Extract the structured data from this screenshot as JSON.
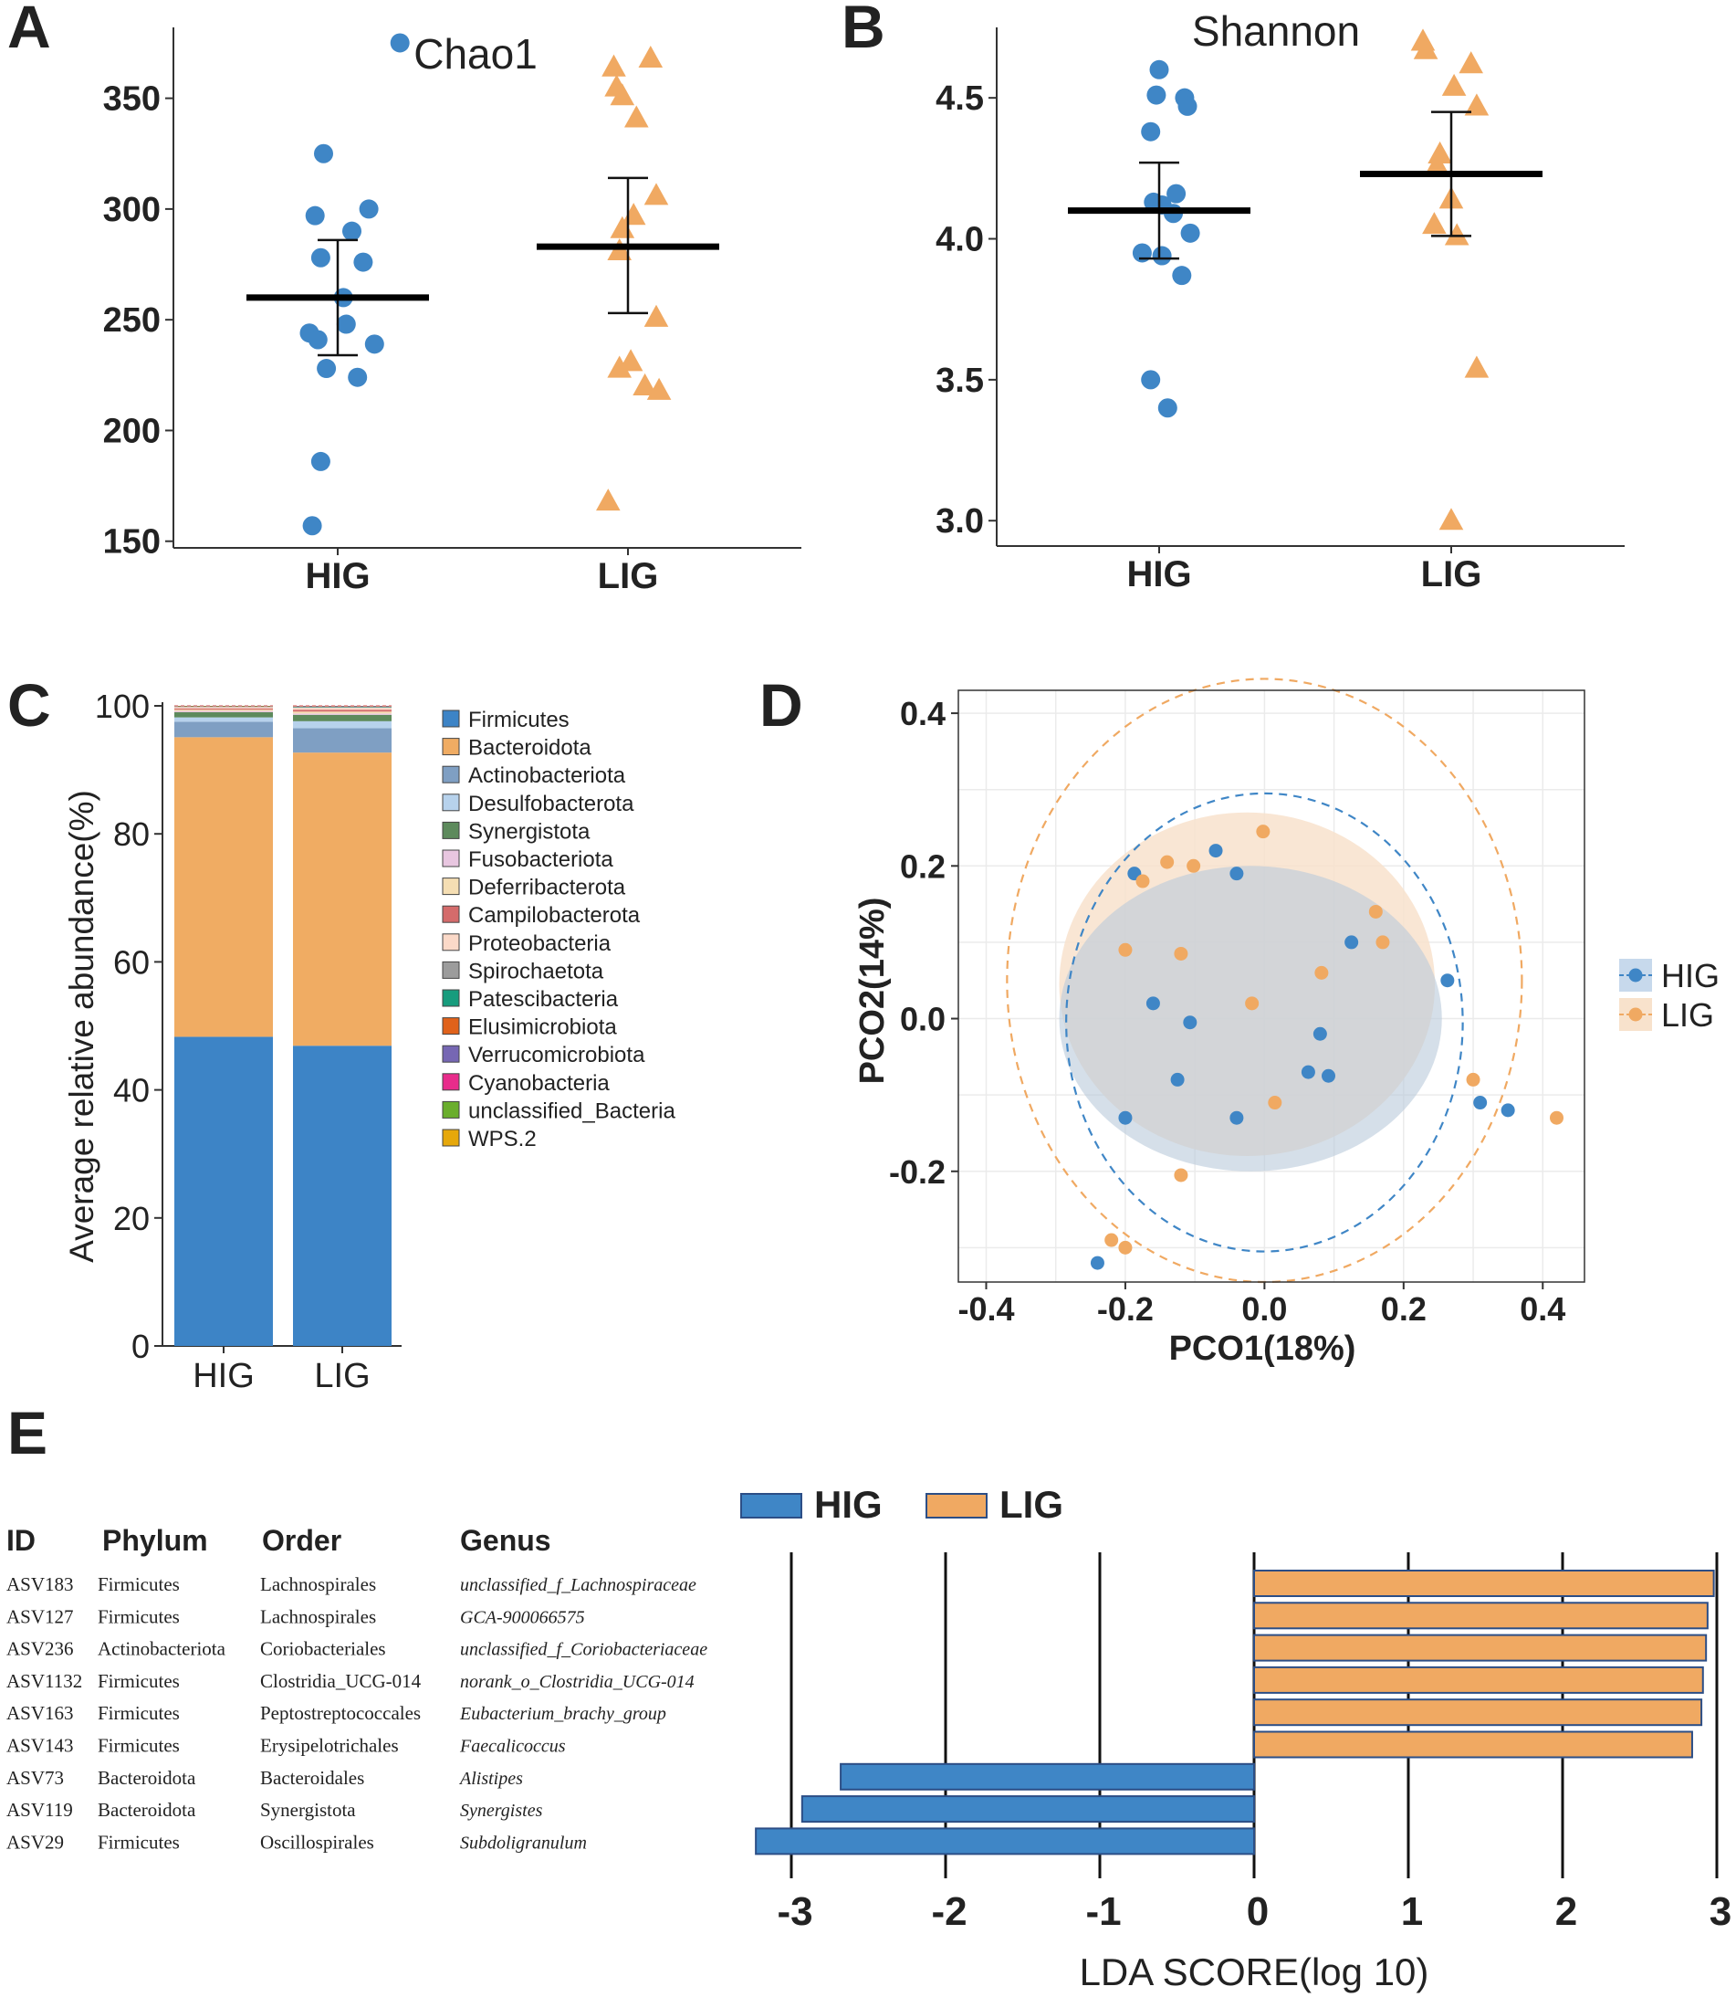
{
  "panel_letters": [
    "A",
    "B",
    "C",
    "D",
    "E"
  ],
  "colors": {
    "HIG": "#3f86c6",
    "LIG": "#f0a962",
    "HIG_fill": "#c7d9ec",
    "LIG_fill": "#f8e2cc",
    "overlap_fill": "#d9d5cf",
    "grid": "#ebebeb",
    "axis": "#333333",
    "text": "#222222"
  },
  "chart_data": [
    {
      "id": "A",
      "type": "scatter",
      "title": "Chao1",
      "categories": [
        "HIG",
        "LIG"
      ],
      "ylim": [
        147,
        382
      ],
      "yticks": [
        150,
        200,
        250,
        300,
        350
      ],
      "series": [
        {
          "name": "HIG",
          "marker": "circle",
          "values": [
            375,
            325,
            300,
            297,
            290,
            278,
            276,
            260,
            248,
            244,
            241,
            239,
            228,
            224,
            186,
            157
          ],
          "jitter": [
            0.22,
            -0.05,
            0.11,
            -0.08,
            0.05,
            -0.06,
            0.09,
            0.02,
            0.03,
            -0.1,
            -0.07,
            0.13,
            -0.04,
            0.07,
            -0.06,
            -0.09
          ],
          "mean": 260,
          "err_low": 234,
          "err_high": 286
        },
        {
          "name": "LIG",
          "marker": "triangle",
          "values": [
            368,
            364,
            355,
            351,
            341,
            306,
            297,
            291,
            281,
            251,
            231,
            228,
            220,
            218,
            168
          ],
          "jitter": [
            0.08,
            -0.05,
            -0.04,
            -0.02,
            0.03,
            0.1,
            0.02,
            -0.02,
            -0.03,
            0.1,
            0.01,
            -0.03,
            0.06,
            0.11,
            -0.07
          ],
          "mean": 283,
          "err_low": 253,
          "err_high": 314
        }
      ]
    },
    {
      "id": "B",
      "type": "scatter",
      "title": "Shannon",
      "categories": [
        "HIG",
        "LIG"
      ],
      "ylim": [
        2.91,
        4.75
      ],
      "yticks": [
        3.0,
        3.5,
        4.0,
        4.5
      ],
      "series": [
        {
          "name": "HIG",
          "marker": "circle",
          "values": [
            4.6,
            4.51,
            4.5,
            4.47,
            4.38,
            4.16,
            4.13,
            4.12,
            4.09,
            4.02,
            3.95,
            3.94,
            3.87,
            3.5,
            3.4
          ],
          "jitter": [
            0.0,
            -0.01,
            0.09,
            0.1,
            -0.03,
            0.06,
            -0.02,
            0.01,
            0.05,
            0.11,
            -0.06,
            0.01,
            0.08,
            -0.03,
            0.03
          ],
          "mean": 4.1,
          "err_low": 3.93,
          "err_high": 4.27
        },
        {
          "name": "LIG",
          "marker": "triangle",
          "values": [
            4.7,
            4.67,
            4.62,
            4.54,
            4.47,
            4.3,
            4.26,
            4.14,
            4.05,
            4.01,
            3.54,
            3.0
          ],
          "jitter": [
            -0.1,
            -0.09,
            0.07,
            0.01,
            0.09,
            -0.04,
            -0.05,
            0.0,
            -0.06,
            0.02,
            0.09,
            0.0
          ],
          "mean": 4.23,
          "err_low": 4.01,
          "err_high": 4.45
        }
      ]
    },
    {
      "id": "C",
      "type": "bar",
      "stacked": true,
      "ylabel": "Average relative abundance(%)",
      "ylim": [
        0,
        100
      ],
      "yticks": [
        0,
        20,
        40,
        60,
        80,
        100
      ],
      "categories": [
        "HIG",
        "LIG"
      ],
      "series": [
        {
          "name": "Firmicutes",
          "color": "#3d84c6",
          "values": [
            48.3,
            46.9
          ]
        },
        {
          "name": "Bacteroidota",
          "color": "#f0ac63",
          "values": [
            46.8,
            45.8
          ]
        },
        {
          "name": "Actinobacteriota",
          "color": "#7f9fc3",
          "values": [
            2.4,
            3.8
          ]
        },
        {
          "name": "Desulfobacterota",
          "color": "#b7d2ec",
          "values": [
            0.7,
            1.1
          ]
        },
        {
          "name": "Synergistota",
          "color": "#5d8a5c",
          "values": [
            0.8,
            1.0
          ]
        },
        {
          "name": "Fusobacteriota",
          "color": "#e8c6e0",
          "values": [
            0.2,
            0.2
          ]
        },
        {
          "name": "Deferribacterota",
          "color": "#f5deb3",
          "values": [
            0.2,
            0.3
          ]
        },
        {
          "name": "Campilobacterota",
          "color": "#d46b6b",
          "values": [
            0.2,
            0.3
          ]
        },
        {
          "name": "Proteobacteria",
          "color": "#fbd9c8",
          "values": [
            0.2,
            0.3
          ]
        },
        {
          "name": "Spirochaetota",
          "color": "#9c9c9c",
          "values": [
            0.1,
            0.1
          ]
        },
        {
          "name": "Patescibacteria",
          "color": "#179c7d",
          "values": [
            0.05,
            0.1
          ]
        },
        {
          "name": "Elusimicrobiota",
          "color": "#e0621b",
          "values": [
            0.05,
            0.05
          ]
        },
        {
          "name": "Verrucomicrobiota",
          "color": "#7667b3",
          "values": [
            0.0,
            0.05
          ]
        },
        {
          "name": "Cyanobacteria",
          "color": "#e82c8b",
          "values": [
            0.0,
            0.0
          ]
        },
        {
          "name": "unclassified_Bacteria",
          "color": "#6aae2d",
          "values": [
            0.0,
            0.0
          ]
        },
        {
          "name": "WPS.2",
          "color": "#e6a80b",
          "values": [
            0.0,
            0.0
          ]
        }
      ]
    },
    {
      "id": "D",
      "type": "scatter",
      "xlabel": "PCO1(18%)",
      "ylabel": "PCO2(14%)",
      "xlim": [
        -0.44,
        0.46
      ],
      "ylim": [
        -0.345,
        0.43
      ],
      "xticks": [
        -0.4,
        -0.2,
        0.0,
        0.2,
        0.4
      ],
      "yticks": [
        -0.2,
        0.0,
        0.2,
        0.4
      ],
      "xtick_labels": [
        "-0.4",
        "-0.2",
        "0.0",
        "0.2",
        "0.4"
      ],
      "ytick_labels": [
        "-0.2",
        "0.0",
        "0.2",
        "0.4"
      ],
      "legend": [
        "HIG",
        "LIG"
      ],
      "series": [
        {
          "name": "HIG",
          "points": [
            [
              -0.07,
              0.22
            ],
            [
              -0.187,
              0.19
            ],
            [
              -0.04,
              0.19
            ],
            [
              0.125,
              0.1
            ],
            [
              0.263,
              0.05
            ],
            [
              -0.16,
              0.02
            ],
            [
              -0.107,
              -0.005
            ],
            [
              0.08,
              -0.02
            ],
            [
              0.063,
              -0.07
            ],
            [
              0.092,
              -0.075
            ],
            [
              -0.125,
              -0.08
            ],
            [
              -0.2,
              -0.13
            ],
            [
              -0.04,
              -0.13
            ],
            [
              0.31,
              -0.11
            ],
            [
              0.35,
              -0.12
            ],
            [
              -0.24,
              -0.32
            ]
          ],
          "ellipse": {
            "cx": 0.0,
            "cy": -0.005,
            "rx": 0.285,
            "ry": 0.3
          },
          "fill": {
            "cx": -0.02,
            "cy": 0.0,
            "rx": 0.275,
            "ry": 0.2
          }
        },
        {
          "name": "LIG",
          "points": [
            [
              -0.002,
              0.245
            ],
            [
              -0.14,
              0.205
            ],
            [
              -0.102,
              0.2
            ],
            [
              -0.175,
              0.18
            ],
            [
              0.16,
              0.14
            ],
            [
              0.17,
              0.1
            ],
            [
              -0.2,
              0.09
            ],
            [
              -0.12,
              0.085
            ],
            [
              0.082,
              0.06
            ],
            [
              -0.018,
              0.02
            ],
            [
              0.015,
              -0.11
            ],
            [
              0.3,
              -0.08
            ],
            [
              0.42,
              -0.13
            ],
            [
              -0.12,
              -0.205
            ],
            [
              -0.22,
              -0.29
            ],
            [
              -0.2,
              -0.3
            ]
          ],
          "ellipse": {
            "cx": 0.0,
            "cy": 0.05,
            "rx": 0.37,
            "ry": 0.395
          },
          "fill": {
            "cx": -0.025,
            "cy": 0.045,
            "rx": 0.27,
            "ry": 0.225
          }
        }
      ]
    },
    {
      "id": "E",
      "type": "bar",
      "orientation": "horizontal",
      "xlabel": "LDA SCORE(log 10)",
      "xlim": [
        -3.25,
        3.05
      ],
      "xticks": [
        -3,
        -2,
        -1,
        0,
        1,
        2,
        3
      ],
      "legend": [
        "HIG",
        "LIG"
      ],
      "table_headers": [
        "ID",
        "Phylum",
        "Order",
        "Genus"
      ],
      "rows": [
        {
          "id": "ASV183",
          "phylum": "Firmicutes",
          "order": "Lachnospirales",
          "genus": "unclassified_f_Lachnospiraceae",
          "group": "LIG",
          "lda": 2.98
        },
        {
          "id": "ASV127",
          "phylum": "Firmicutes",
          "order": "Lachnospirales",
          "genus": "GCA-900066575",
          "group": "LIG",
          "lda": 2.94
        },
        {
          "id": "ASV236",
          "phylum": "Actinobacteriota",
          "order": "Coriobacteriales",
          "genus": "unclassified_f_Coriobacteriaceae",
          "group": "LIG",
          "lda": 2.93
        },
        {
          "id": "ASV1132",
          "phylum": "Firmicutes",
          "order": "Clostridia_UCG-014",
          "genus": "norank_o_Clostridia_UCG-014",
          "group": "LIG",
          "lda": 2.91
        },
        {
          "id": "ASV163",
          "phylum": "Firmicutes",
          "order": "Peptostreptococcales",
          "genus": "Eubacterium_brachy_group",
          "group": "LIG",
          "lda": 2.9
        },
        {
          "id": "ASV143",
          "phylum": "Firmicutes",
          "order": "Erysipelotrichales",
          "genus": "Faecalicoccus",
          "group": "LIG",
          "lda": 2.84
        },
        {
          "id": "ASV73",
          "phylum": "Bacteroidota",
          "order": "Bacteroidales",
          "genus": "Alistipes",
          "group": "HIG",
          "lda": -2.68
        },
        {
          "id": "ASV119",
          "phylum": "Bacteroidota",
          "order": "Synergistota",
          "genus": "Synergistes",
          "group": "HIG",
          "lda": -2.93
        },
        {
          "id": "ASV29",
          "phylum": "Firmicutes",
          "order": "Oscillospirales",
          "genus": "Subdoligranulum",
          "group": "HIG",
          "lda": -3.23
        }
      ]
    }
  ]
}
